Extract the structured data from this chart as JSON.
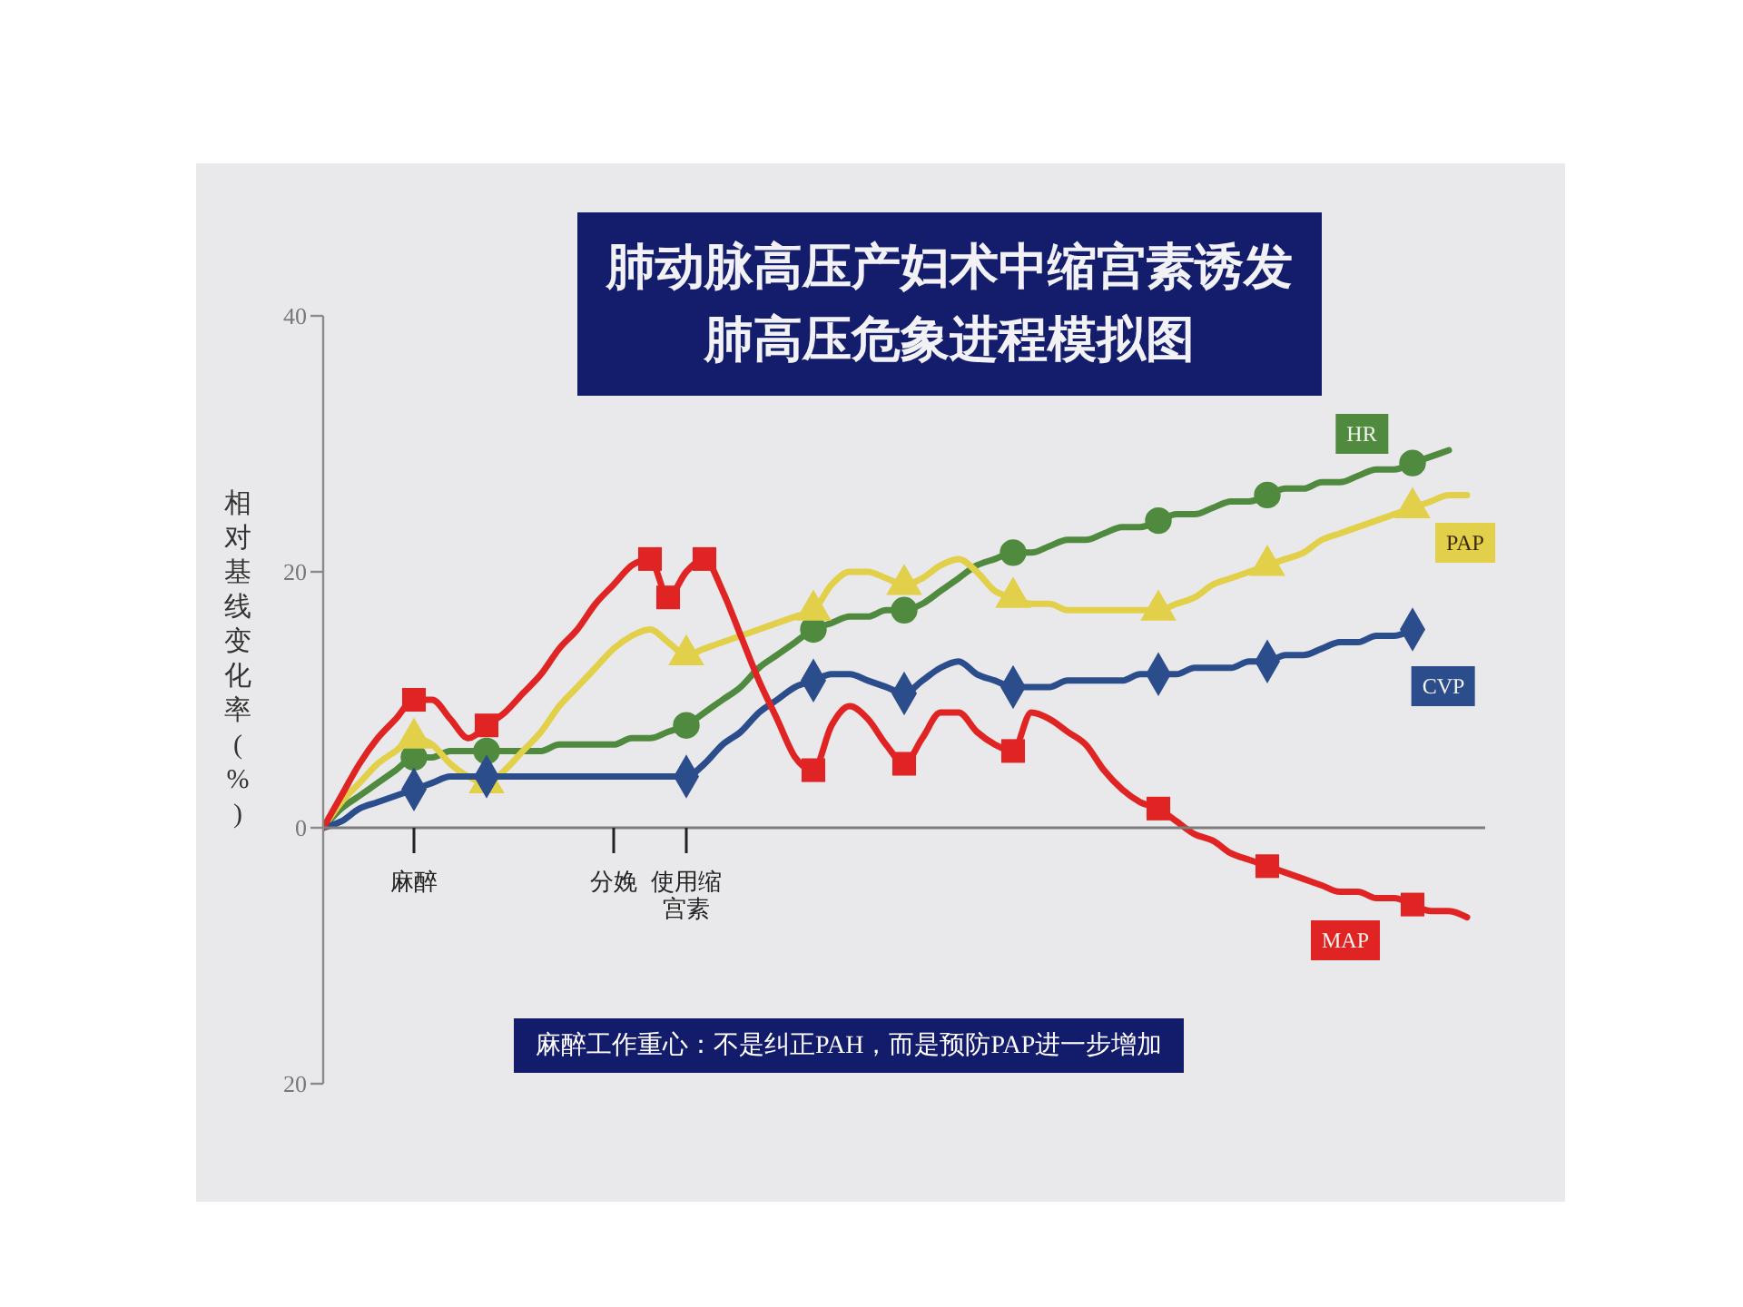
{
  "chart_data": {
    "type": "line",
    "title": "肺动脉高压产妇术中缩宫素诱发肺高压危象进程模拟图",
    "ylabel": "相对基线变化率(%)",
    "annotations": [
      "麻醉工作重心：不是纠正PAH，而是预防PAP进一步增加"
    ],
    "categories": [
      null,
      null,
      null,
      null,
      null,
      "麻醉",
      null,
      null,
      null,
      null,
      null,
      null,
      null,
      null,
      null,
      null,
      "分娩",
      null,
      null,
      null,
      "使用缩宫素",
      null,
      null,
      null,
      null,
      null,
      null,
      null,
      null,
      null,
      null,
      null,
      null,
      null,
      null,
      null,
      null,
      null,
      null,
      null,
      null,
      null,
      null,
      null,
      null,
      null,
      null,
      null,
      null,
      null,
      null,
      null,
      null,
      null,
      null,
      null,
      null,
      null,
      null,
      null,
      null,
      null,
      null,
      null,
      null
    ],
    "ylim": [
      -20,
      40
    ],
    "yticks": [
      {
        "value": -20,
        "label": "20"
      },
      0,
      20,
      40
    ],
    "series": [
      {
        "name": "HR",
        "color": "#4f8a3f",
        "values": [
          0,
          1.5,
          2.5,
          3.5,
          4.5,
          5.5,
          5.5,
          6,
          6,
          6,
          6,
          6,
          6,
          6.5,
          6.5,
          6.5,
          6.5,
          7,
          7,
          7.5,
          8,
          9,
          10,
          11,
          12.5,
          13.5,
          14.5,
          15.5,
          16,
          16.5,
          16.5,
          17,
          17,
          17.5,
          18.5,
          19.5,
          20.5,
          21,
          21.5,
          21.5,
          22,
          22.5,
          22.5,
          23,
          23.5,
          23.5,
          24,
          24.5,
          24.5,
          25,
          25.5,
          25.5,
          26,
          26.5,
          26.5,
          27,
          27,
          27.5,
          28,
          28,
          28.5,
          29,
          29.5,
          null,
          null
        ]
      },
      {
        "name": "PAP",
        "color": "#e2d04a",
        "values": [
          0,
          2,
          3.5,
          5,
          6,
          7,
          6.5,
          5,
          4,
          3.5,
          4.5,
          6,
          7.5,
          9.5,
          11,
          12.5,
          14,
          15,
          15.5,
          14.5,
          13.5,
          14,
          14.5,
          15,
          15.5,
          16,
          16.5,
          17,
          19,
          20,
          20,
          19.5,
          19,
          19.5,
          20.5,
          21,
          20,
          18.5,
          18,
          17.5,
          17.5,
          17,
          17,
          17,
          17,
          17,
          17,
          17.5,
          18,
          19,
          19.5,
          20,
          20.5,
          21,
          21.5,
          22.5,
          23,
          23.5,
          24,
          24.5,
          25,
          25.5,
          26,
          26,
          null
        ]
      },
      {
        "name": "CVP",
        "color": "#2b4d8c",
        "values": [
          0,
          0.5,
          1.5,
          2,
          2.5,
          3,
          3.5,
          4,
          4,
          4,
          4,
          4,
          4,
          4,
          4,
          4,
          4,
          4,
          4,
          4,
          4,
          5,
          6.5,
          7.5,
          9,
          10,
          11,
          11.5,
          12,
          12,
          11.5,
          11,
          10.5,
          11.5,
          12.5,
          13,
          12,
          11.5,
          11,
          11,
          11,
          11.5,
          11.5,
          11.5,
          11.5,
          12,
          12,
          12,
          12.5,
          12.5,
          12.5,
          13,
          13,
          13.5,
          13.5,
          14,
          14.5,
          14.5,
          15,
          15,
          15.5,
          null,
          null,
          null,
          null
        ]
      },
      {
        "name": "MAP",
        "color": "#e02424",
        "values": [
          0,
          2.5,
          5,
          7,
          8.5,
          10,
          10,
          8.5,
          7,
          8,
          9,
          10.5,
          12,
          14,
          15.5,
          17.5,
          19,
          20.5,
          21,
          18,
          20,
          21,
          18.5,
          15,
          11.5,
          8.5,
          5.5,
          4.5,
          8,
          9.5,
          8.5,
          6.5,
          5,
          7,
          9,
          9,
          7.5,
          6.5,
          6,
          9,
          8.5,
          7.5,
          6.5,
          4.5,
          3,
          2,
          1.5,
          0.5,
          -0.5,
          -1,
          -2,
          -2.5,
          -3,
          -3.5,
          -4,
          -4.5,
          -5,
          -5,
          -5.5,
          -5.5,
          -6,
          -6.5,
          -6.5,
          -7,
          null
        ]
      },
      {
        "type": "scatter",
        "color": "#4f8a3f",
        "marker": "circle",
        "values": [
          null,
          null,
          null,
          null,
          null,
          5.5,
          null,
          null,
          null,
          6,
          null,
          null,
          null,
          null,
          null,
          null,
          null,
          null,
          null,
          null,
          8,
          null,
          null,
          null,
          null,
          null,
          null,
          15.5,
          null,
          null,
          null,
          null,
          17,
          null,
          null,
          null,
          null,
          null,
          21.5,
          null,
          null,
          null,
          null,
          null,
          null,
          null,
          24,
          null,
          null,
          null,
          null,
          null,
          26,
          null,
          null,
          null,
          null,
          null,
          null,
          null,
          28.5,
          null,
          null,
          null,
          null
        ]
      },
      {
        "type": "scatter",
        "color": "#e2d04a",
        "marker": "triangle",
        "values": [
          null,
          null,
          null,
          null,
          null,
          7,
          null,
          null,
          null,
          3.5,
          null,
          null,
          null,
          null,
          null,
          null,
          null,
          null,
          null,
          null,
          13.5,
          null,
          null,
          null,
          null,
          null,
          null,
          17,
          null,
          null,
          null,
          null,
          19,
          null,
          null,
          null,
          null,
          null,
          18,
          null,
          null,
          null,
          null,
          null,
          null,
          null,
          17,
          null,
          null,
          null,
          null,
          null,
          20.5,
          null,
          null,
          null,
          null,
          null,
          null,
          null,
          25,
          null,
          null,
          null,
          null
        ]
      },
      {
        "type": "scatter",
        "color": "#2b4d8c",
        "marker": "diamond",
        "values": [
          null,
          null,
          null,
          null,
          null,
          3,
          null,
          null,
          null,
          4,
          null,
          null,
          null,
          null,
          null,
          null,
          null,
          null,
          null,
          null,
          4,
          null,
          null,
          null,
          null,
          null,
          null,
          11.5,
          null,
          null,
          null,
          null,
          10.5,
          null,
          null,
          null,
          null,
          null,
          11,
          null,
          null,
          null,
          null,
          null,
          null,
          null,
          12,
          null,
          null,
          null,
          null,
          null,
          13,
          null,
          null,
          null,
          null,
          null,
          null,
          null,
          15.5,
          null,
          null,
          null,
          null
        ]
      },
      {
        "type": "scatter",
        "color": "#e02424",
        "marker": "square",
        "values": [
          null,
          null,
          null,
          null,
          null,
          10,
          null,
          null,
          null,
          8,
          null,
          null,
          null,
          null,
          null,
          null,
          null,
          null,
          21,
          18,
          null,
          21,
          null,
          null,
          null,
          null,
          null,
          4.5,
          null,
          null,
          null,
          null,
          5,
          null,
          null,
          null,
          null,
          null,
          6,
          null,
          null,
          null,
          null,
          null,
          null,
          null,
          1.5,
          null,
          null,
          null,
          null,
          null,
          -3,
          null,
          null,
          null,
          null,
          null,
          null,
          null,
          -6,
          null,
          null,
          null,
          null
        ]
      }
    ]
  }
}
